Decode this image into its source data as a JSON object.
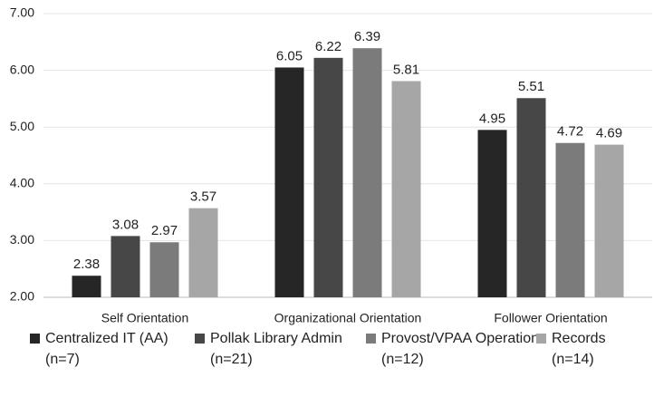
{
  "chart_data": {
    "type": "bar",
    "categories": [
      "Self Orientation",
      "Organizational Orientation",
      "Follower Orientation"
    ],
    "series": [
      {
        "name": "Centralized IT (AA)\n(n=7)",
        "color": "#262626",
        "values": [
          2.38,
          6.05,
          4.95
        ]
      },
      {
        "name": "Pollak Library Admin\n(n=21)",
        "color": "#474747",
        "values": [
          3.08,
          6.22,
          5.51
        ]
      },
      {
        "name": "Provost/VPAA Operations\n(n=12)",
        "color": "#7b7b7b",
        "values": [
          2.97,
          6.39,
          4.72
        ]
      },
      {
        "name": "Records\n(n=14)",
        "color": "#a6a6a6",
        "values": [
          3.57,
          5.81,
          4.69
        ]
      }
    ],
    "ylim": [
      2,
      7
    ],
    "yticks": [
      {
        "value": 2,
        "label": "2.00"
      },
      {
        "value": 3,
        "label": "3.00"
      },
      {
        "value": 4,
        "label": "4.00"
      },
      {
        "value": 5,
        "label": "5.00"
      },
      {
        "value": 6,
        "label": "6.00"
      },
      {
        "value": 7,
        "label": "7.00"
      }
    ],
    "grid": true,
    "legend": "bottom"
  }
}
